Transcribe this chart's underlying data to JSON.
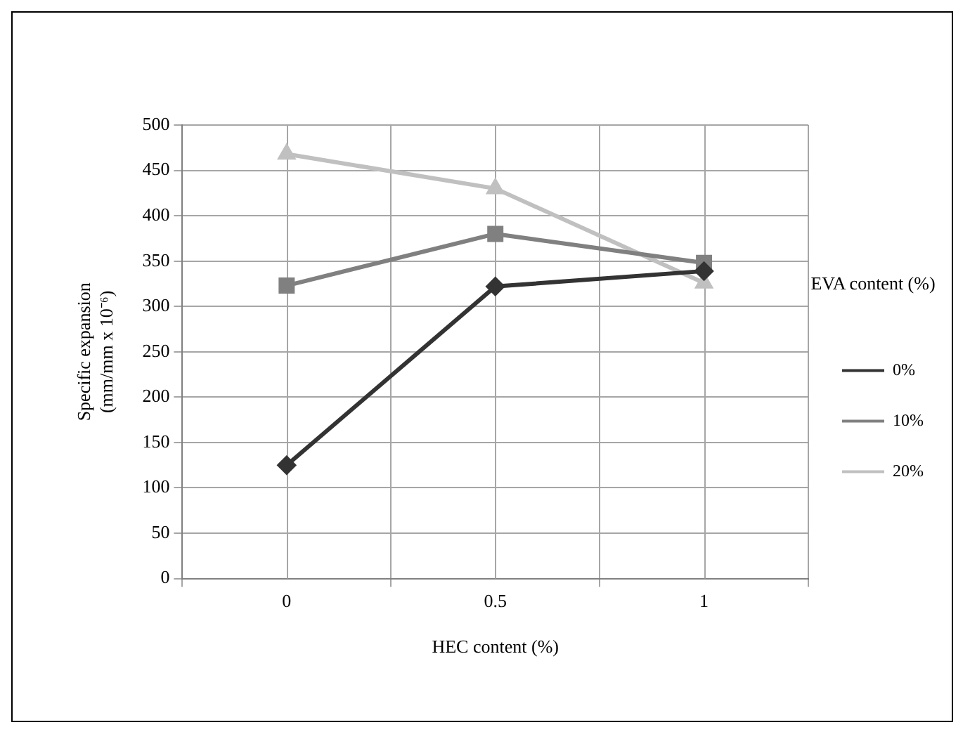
{
  "chart_data": {
    "type": "line",
    "categories": [
      "0",
      "0.5",
      "1"
    ],
    "series": [
      {
        "name": "0%",
        "color": "#333333",
        "values": [
          125,
          322,
          339
        ],
        "marker": "diamond"
      },
      {
        "name": "10%",
        "color": "#808080",
        "values": [
          323,
          380,
          348
        ],
        "marker": "square"
      },
      {
        "name": "20%",
        "color": "#c0c0c0",
        "values": [
          468,
          430,
          326
        ],
        "marker": "triangle"
      }
    ],
    "xlabel": "HEC content (%)",
    "ylabel": "Specific expansion\n(mm/mm x 10⁻⁶)",
    "legend_title": "EVA content (%)",
    "legend": "right",
    "ylim": [
      0,
      500
    ],
    "yticks": [
      0,
      50,
      100,
      150,
      200,
      250,
      300,
      350,
      400,
      450,
      500
    ],
    "grid": true,
    "line_style": "solid"
  }
}
